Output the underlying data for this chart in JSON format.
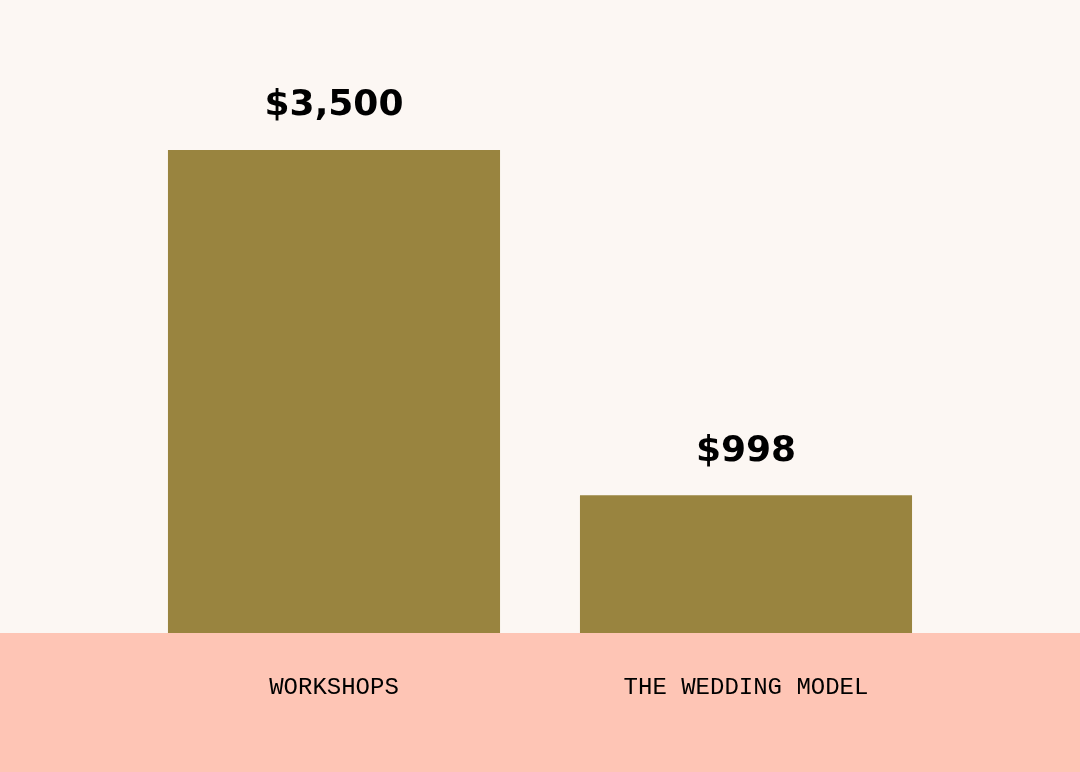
{
  "chart_data": {
    "type": "bar",
    "categories": [
      "WORKSHOPS",
      "THE WEDDING MODEL"
    ],
    "values": [
      3500,
      998
    ],
    "color": "#99843f",
    "value_labels": [
      "$3,500",
      "$998"
    ],
    "grid": false,
    "legend": false
  }
}
